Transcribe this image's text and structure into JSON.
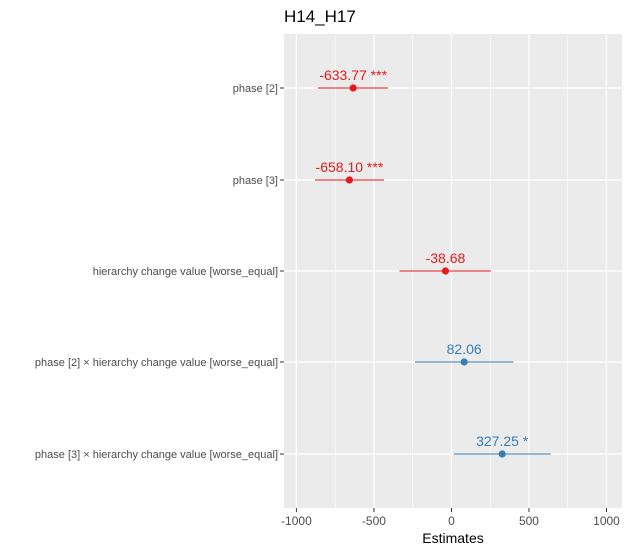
{
  "chart_data": {
    "type": "forest",
    "title": "H14_H17",
    "xlabel": "Estimates",
    "xlim": [
      -1080,
      1100
    ],
    "x_ticks": [
      -1000,
      -500,
      0,
      500,
      1000
    ],
    "x_tick_labels": [
      "-1000",
      "-500",
      "0",
      "500",
      "1000"
    ],
    "grid": true,
    "colors": {
      "negative": "#E41A1C",
      "positive": "#377EB8",
      "panel": "#EBEBEB",
      "grid": "#FFFFFF"
    },
    "terms": [
      {
        "label": "phase [2]",
        "estimate": -633.77,
        "ci": [
          -860,
          -410
        ],
        "label_text": "-633.77 ***",
        "sign": "negative"
      },
      {
        "label": "phase [3]",
        "estimate": -658.1,
        "ci": [
          -880,
          -435
        ],
        "label_text": "-658.10 ***",
        "sign": "negative"
      },
      {
        "label": "hierarchy change value [worse_equal]",
        "estimate": -38.68,
        "ci": [
          -335,
          255
        ],
        "label_text": "-38.68",
        "sign": "negative"
      },
      {
        "label": "phase [2] × hierarchy change value [worse_equal]",
        "estimate": 82.06,
        "ci": [
          -235,
          400
        ],
        "label_text": "82.06",
        "sign": "positive"
      },
      {
        "label": "phase [3] × hierarchy change value [worse_equal]",
        "estimate": 327.25,
        "ci": [
          15,
          640
        ],
        "label_text": "327.25 *",
        "sign": "positive"
      }
    ]
  }
}
